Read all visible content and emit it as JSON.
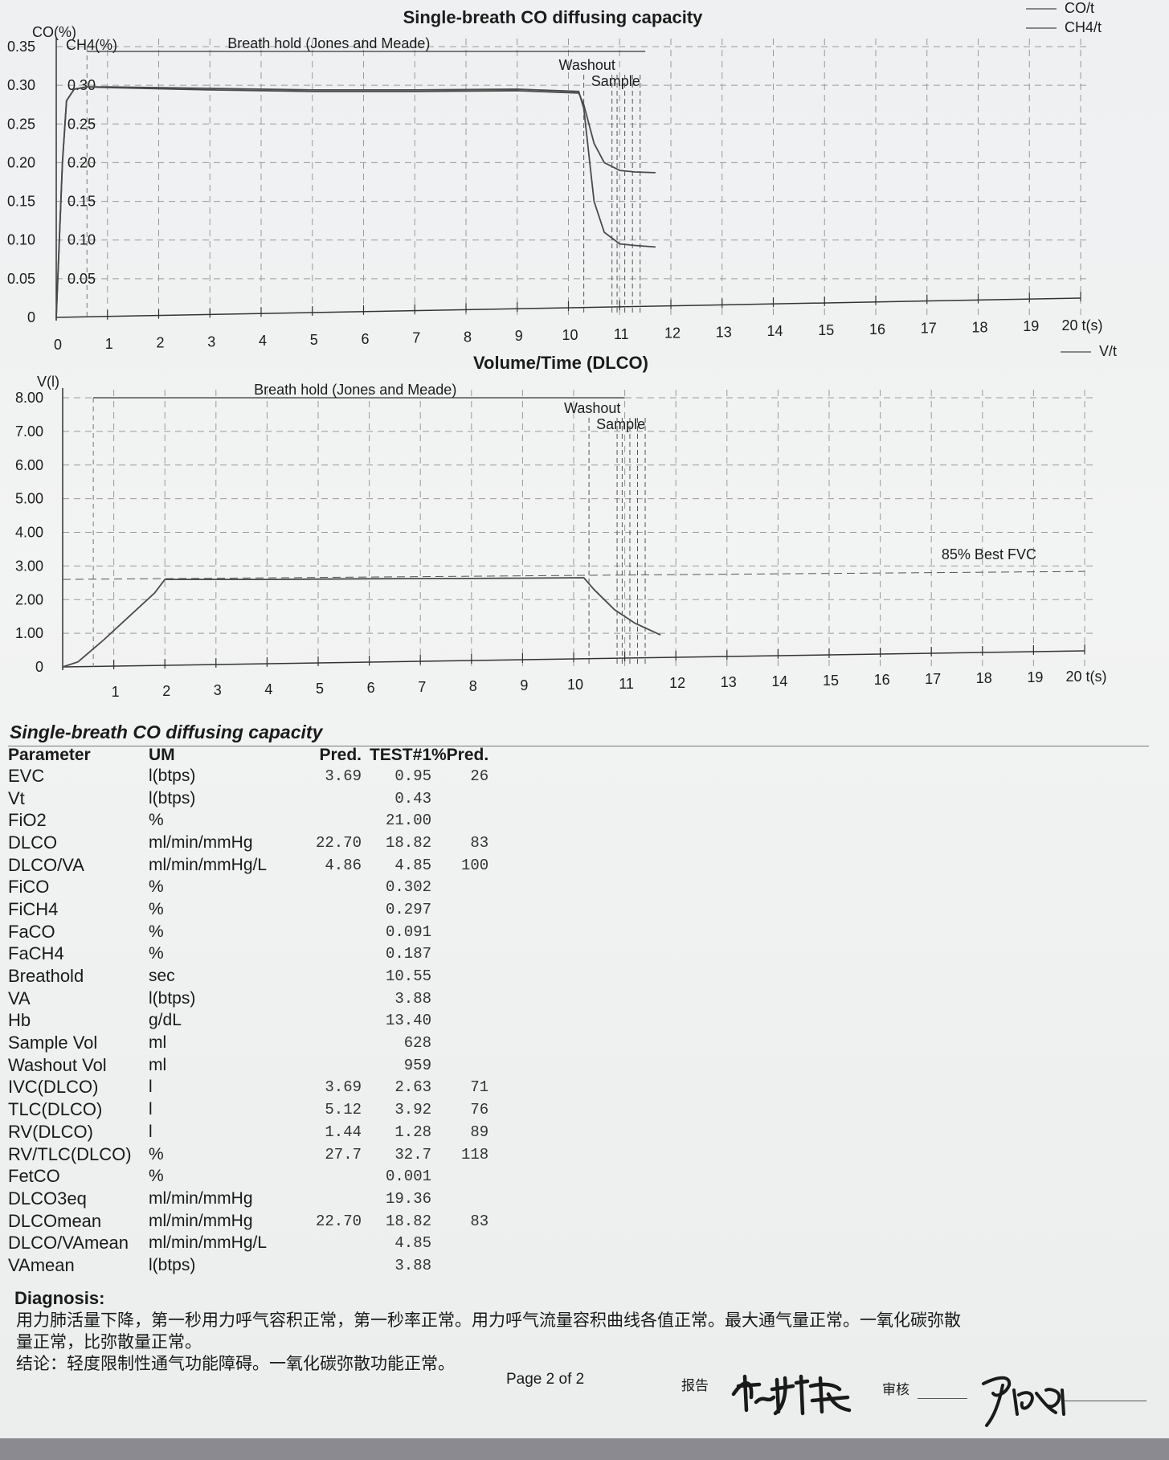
{
  "chart_data": [
    {
      "type": "line",
      "title": "Single-breath CO diffusing capacity",
      "ylabel": "CO(%)",
      "ylabel2": "CH4(%)",
      "xlabel": "t(s)",
      "xlim": [
        0,
        20
      ],
      "ylim": [
        0,
        0.35
      ],
      "x_ticks": [
        "0",
        "1",
        "2",
        "3",
        "4",
        "5",
        "6",
        "7",
        "8",
        "9",
        "10",
        "11",
        "12",
        "13",
        "14",
        "15",
        "16",
        "17",
        "18",
        "19",
        "20"
      ],
      "x_axis_end_label": "20 t(s)",
      "y_ticks": [
        "0",
        "0.05",
        "0.10",
        "0.15",
        "0.20",
        "0.25",
        "0.30",
        "0.35"
      ],
      "y2_ticks": [
        "0.05",
        "0.10",
        "0.15",
        "0.20",
        "0.25",
        "0.30"
      ],
      "grid": true,
      "legend": [
        "CO/t",
        "CH4/t"
      ],
      "legend_position": "top-right",
      "annotations": [
        "Breath hold (Jones and Meade)",
        "Washout",
        "Sample"
      ],
      "series": [
        {
          "name": "CO/t",
          "x": [
            0,
            0.12,
            0.2,
            0.35,
            0.6,
            1,
            3,
            5,
            7,
            9,
            10.2,
            10.3,
            10.4,
            10.5,
            10.7,
            11.0,
            11.3,
            11.7
          ],
          "y": [
            0,
            0.2,
            0.28,
            0.295,
            0.298,
            0.298,
            0.296,
            0.294,
            0.294,
            0.295,
            0.292,
            0.27,
            0.21,
            0.15,
            0.11,
            0.095,
            0.093,
            0.091
          ]
        },
        {
          "name": "CH4/t",
          "x": [
            0,
            0.12,
            0.2,
            0.35,
            0.6,
            1,
            3,
            5,
            7,
            9,
            10.2,
            10.3,
            10.4,
            10.5,
            10.7,
            11.0,
            11.3,
            11.7
          ],
          "y": [
            0,
            0.2,
            0.28,
            0.295,
            0.298,
            0.297,
            0.294,
            0.292,
            0.292,
            0.293,
            0.29,
            0.275,
            0.25,
            0.225,
            0.2,
            0.19,
            0.188,
            0.187
          ]
        }
      ]
    },
    {
      "type": "line",
      "title": "Volume/Time (DLCO)",
      "ylabel": "V(l)",
      "xlabel": "t(s)",
      "xlim": [
        0,
        20
      ],
      "ylim": [
        0,
        8
      ],
      "x_ticks": [
        "1",
        "2",
        "3",
        "4",
        "5",
        "6",
        "7",
        "8",
        "9",
        "10",
        "11",
        "12",
        "13",
        "14",
        "15",
        "16",
        "17",
        "18",
        "19",
        "20"
      ],
      "x_axis_end_label": "20 t(s)",
      "y_ticks": [
        "0",
        "1.00",
        "2.00",
        "3.00",
        "4.00",
        "5.00",
        "6.00",
        "7.00",
        "8.00"
      ],
      "grid": true,
      "legend": [
        "V/t"
      ],
      "legend_position": "top-right",
      "annotations": [
        "Breath hold (Jones and Meade)",
        "Washout",
        "Sample",
        "85% Best FVC"
      ],
      "series": [
        {
          "name": "V/t",
          "x": [
            0,
            0.3,
            0.8,
            1.3,
            1.8,
            2.0,
            4,
            6,
            8,
            10.2,
            10.4,
            10.8,
            11.2,
            11.7
          ],
          "y": [
            0,
            0.15,
            0.8,
            1.5,
            2.2,
            2.6,
            2.6,
            2.62,
            2.63,
            2.65,
            2.3,
            1.7,
            1.3,
            0.95
          ]
        }
      ]
    }
  ],
  "table": {
    "title": "Single-breath CO diffusing capacity",
    "headers": {
      "parameter": "Parameter",
      "um": "UM",
      "pred": "Pred.",
      "test": "TEST#1",
      "pct": "%Pred."
    },
    "rows": [
      {
        "parameter": "EVC",
        "um": "l(btps)",
        "pred": "3.69",
        "test": "0.95",
        "pct": "26"
      },
      {
        "parameter": "Vt",
        "um": "l(btps)",
        "pred": "",
        "test": "0.43",
        "pct": ""
      },
      {
        "parameter": "FiO2",
        "um": "%",
        "pred": "",
        "test": "21.00",
        "pct": ""
      },
      {
        "parameter": "DLCO",
        "um": "ml/min/mmHg",
        "pred": "22.70",
        "test": "18.82",
        "pct": "83"
      },
      {
        "parameter": "DLCO/VA",
        "um": "ml/min/mmHg/L",
        "pred": "4.86",
        "test": "4.85",
        "pct": "100"
      },
      {
        "parameter": "FiCO",
        "um": "%",
        "pred": "",
        "test": "0.302",
        "pct": ""
      },
      {
        "parameter": "FiCH4",
        "um": "%",
        "pred": "",
        "test": "0.297",
        "pct": ""
      },
      {
        "parameter": "FaCO",
        "um": "%",
        "pred": "",
        "test": "0.091",
        "pct": ""
      },
      {
        "parameter": "FaCH4",
        "um": "%",
        "pred": "",
        "test": "0.187",
        "pct": ""
      },
      {
        "parameter": "Breathold",
        "um": "sec",
        "pred": "",
        "test": "10.55",
        "pct": ""
      },
      {
        "parameter": "VA",
        "um": "l(btps)",
        "pred": "",
        "test": "3.88",
        "pct": ""
      },
      {
        "parameter": "Hb",
        "um": "g/dL",
        "pred": "",
        "test": "13.40",
        "pct": ""
      },
      {
        "parameter": "Sample Vol",
        "um": "ml",
        "pred": "",
        "test": "628",
        "pct": ""
      },
      {
        "parameter": "Washout Vol",
        "um": "ml",
        "pred": "",
        "test": "959",
        "pct": ""
      },
      {
        "parameter": "IVC(DLCO)",
        "um": "l",
        "pred": "3.69",
        "test": "2.63",
        "pct": "71"
      },
      {
        "parameter": "TLC(DLCO)",
        "um": "l",
        "pred": "5.12",
        "test": "3.92",
        "pct": "76"
      },
      {
        "parameter": "RV(DLCO)",
        "um": "l",
        "pred": "1.44",
        "test": "1.28",
        "pct": "89"
      },
      {
        "parameter": "RV/TLC(DLCO)",
        "um": "%",
        "pred": "27.7",
        "test": "32.7",
        "pct": "118"
      },
      {
        "parameter": "FetCO",
        "um": "%",
        "pred": "",
        "test": "0.001",
        "pct": ""
      },
      {
        "parameter": "DLCO3eq",
        "um": "ml/min/mmHg",
        "pred": "",
        "test": "19.36",
        "pct": ""
      },
      {
        "parameter": "DLCOmean",
        "um": "ml/min/mmHg",
        "pred": "22.70",
        "test": "18.82",
        "pct": "83"
      },
      {
        "parameter": "DLCO/VAmean",
        "um": "ml/min/mmHg/L",
        "pred": "",
        "test": "4.85",
        "pct": ""
      },
      {
        "parameter": "VAmean",
        "um": "l(btps)",
        "pred": "",
        "test": "3.88",
        "pct": ""
      }
    ]
  },
  "diagnosis": {
    "title": "Diagnosis:",
    "lines": [
      "用力肺活量下降，第一秒用力呼气容积正常，第一秒率正常。用力呼气流量容积曲线各值正常。最大通气量正常。一氧化碳弥散",
      "量正常，比弥散量正常。",
      "结论：轻度限制性通气功能障碍。一氧化碳弥散功能正常。"
    ]
  },
  "footer": {
    "page": "Page 2 of 2",
    "report_label": "报告",
    "review_label": "审核",
    "reporter_signature": "蒋潇伟"
  },
  "colors": {
    "paper": "#eef0f1",
    "ink": "#1a1a1a",
    "curve": "#555555",
    "grid": "#8c8c8c"
  }
}
